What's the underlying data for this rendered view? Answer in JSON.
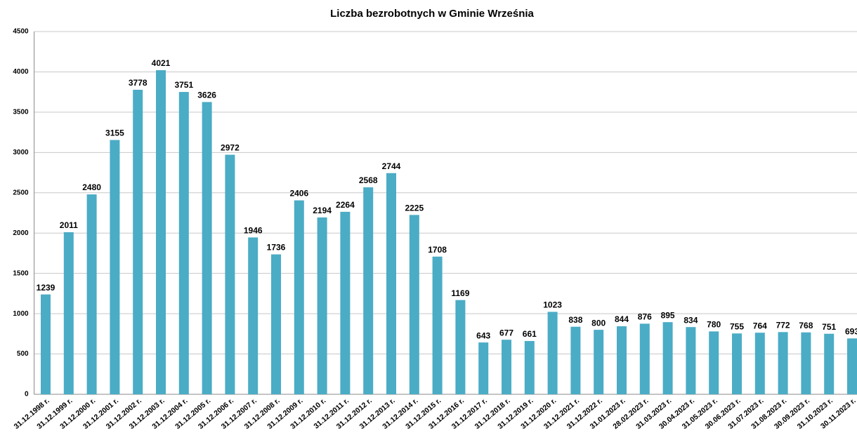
{
  "chart_data": {
    "type": "bar",
    "title": "Liczba bezrobotnych w Gminie Września",
    "categories": [
      "31.12.1998 r.",
      "31.12.1999 r.",
      "31.12.2000 r.",
      "31.12.2001 r.",
      "31.12.2002 r.",
      "31.12.2003 r.",
      "31.12.2004 r.",
      "31.12.2005 r.",
      "31.12.2006 r.",
      "31.12.2007 r.",
      "31.12.2008 r.",
      "31.12.2009 r.",
      "31.12.2010 r.",
      "31.12.2011 r.",
      "31.12.2012 r.",
      "31.12.2013 r.",
      "31.12.2014 r.",
      "31.12.2015 r.",
      "31.12.2016 r.",
      "31.12.2017 r.",
      "31.12.2018 r.",
      "31.12.2019 r.",
      "31.12.2020 r.",
      "31.12.2021 r.",
      "31.12.2022 r.",
      "31.01.2023 r.",
      "28.02.2023 r.",
      "31.03.2023 r.",
      "30.04.2023 r.",
      "31.05.2023 r.",
      "30.06.2023 r.",
      "31.07.2023 r.",
      "31.08.2023 r.",
      "30.09.2023 r.",
      "31.10.2023 r.",
      "30.11.2023 r."
    ],
    "values": [
      1239,
      2011,
      2480,
      3155,
      3778,
      4021,
      3751,
      3626,
      2972,
      1946,
      1736,
      2406,
      2194,
      2264,
      2568,
      2744,
      2225,
      1708,
      1169,
      643,
      677,
      661,
      1023,
      838,
      800,
      844,
      876,
      895,
      834,
      780,
      755,
      764,
      772,
      768,
      751,
      693
    ],
    "color": "#4bacc6",
    "ylim": [
      0,
      4500
    ],
    "yticks": [
      0,
      500,
      1000,
      1500,
      2000,
      2500,
      3000,
      3500,
      4000,
      4500
    ],
    "grid": true
  }
}
